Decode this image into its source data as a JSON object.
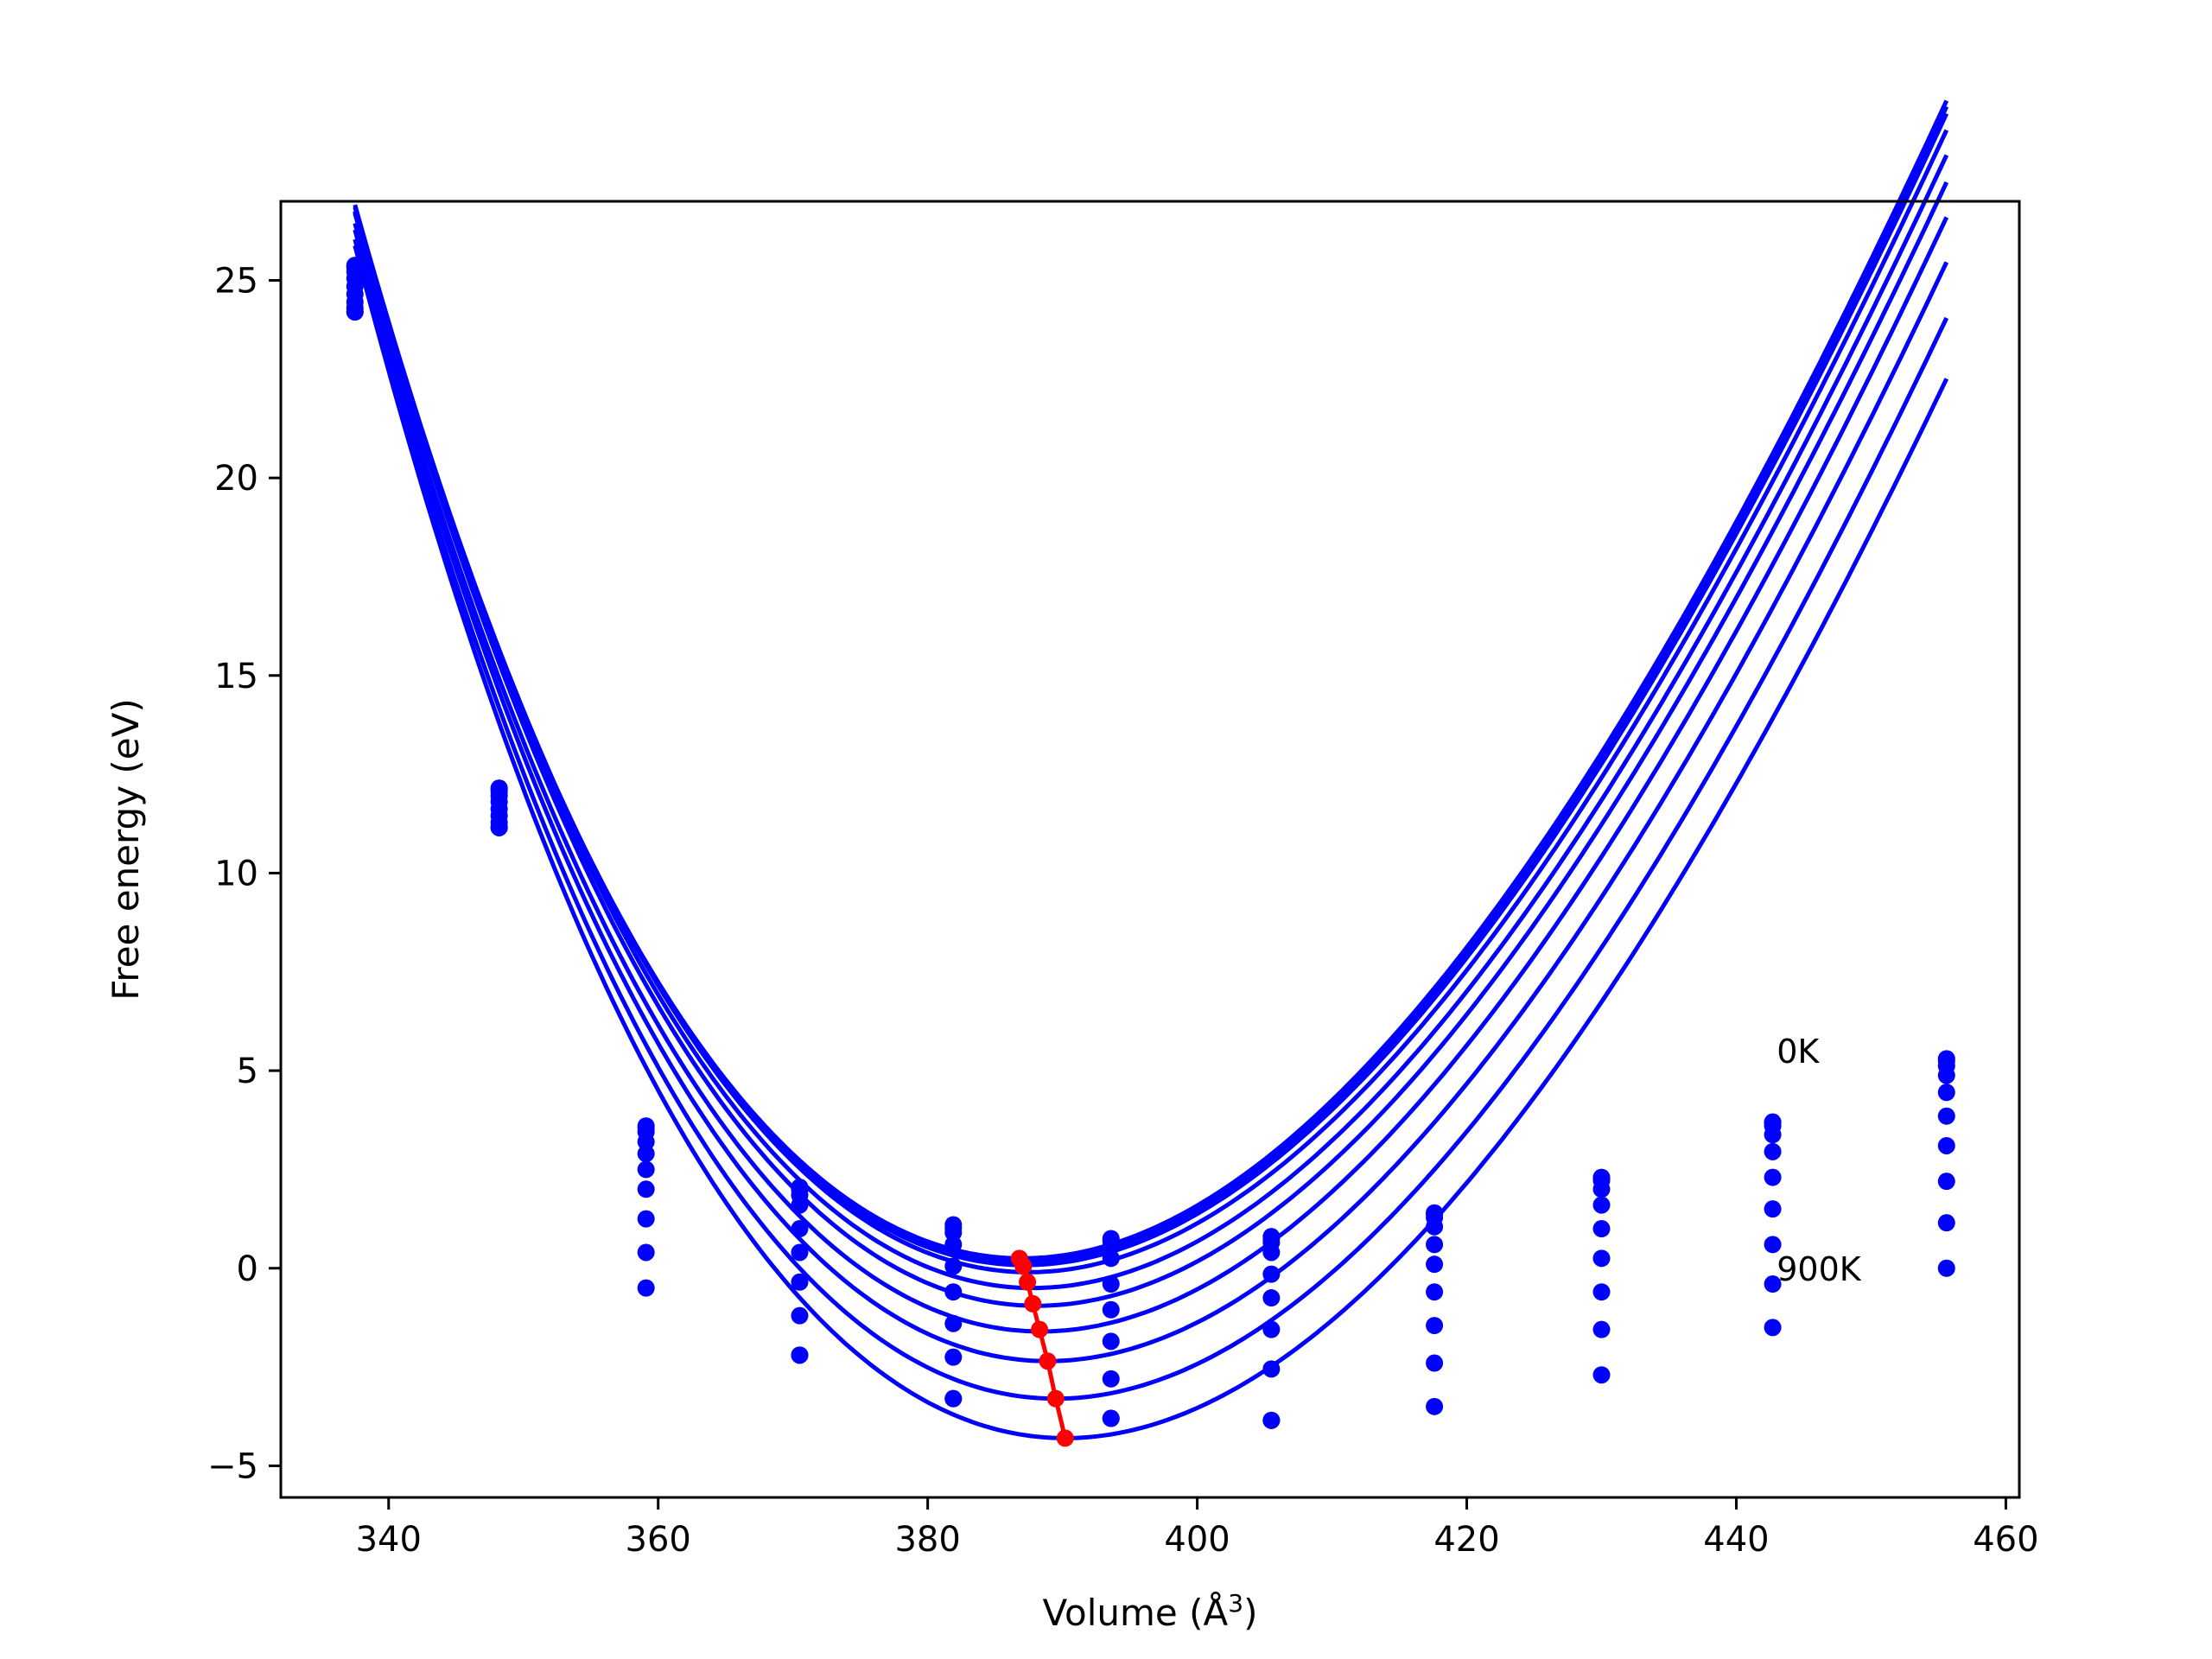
{
  "chart_data": {
    "type": "line",
    "xlabel": "Volume (Å",
    "xlabel_sup": "3",
    "xlabel_end": ")",
    "ylabel": "Free energy (eV)",
    "xlim": [
      332,
      461
    ],
    "ylim": [
      -5.8,
      27
    ],
    "xticks": [
      340,
      360,
      380,
      400,
      420,
      440,
      460
    ],
    "yticks": [
      -5,
      0,
      5,
      10,
      15,
      20,
      25
    ],
    "ytick_labels": [
      "−5",
      "0",
      "5",
      "10",
      "15",
      "20",
      "25"
    ],
    "grid": false,
    "colors": {
      "curves": "#0000ff",
      "points": "#0000ff",
      "minima": "#ff0000"
    },
    "annotations": [
      {
        "text": "0K",
        "x": 443,
        "y": 5.5
      },
      {
        "text": "900K",
        "x": 443,
        "y": 0.0
      }
    ],
    "volumes": [
      337.5,
      348.2,
      359.1,
      370.5,
      381.9,
      393.6,
      405.5,
      417.6,
      430.0,
      442.7,
      455.6
    ],
    "series": [
      {
        "values": [
          25.38,
          12.15,
          3.6,
          2.05,
          1.1,
          0.75,
          0.8,
          1.4,
          2.3,
          3.7,
          5.3
        ]
      },
      {
        "values": [
          25.33,
          12.12,
          3.55,
          1.98,
          1.02,
          0.68,
          0.75,
          1.36,
          2.28,
          3.68,
          5.25
        ]
      },
      {
        "values": [
          25.22,
          12.06,
          3.45,
          1.85,
          0.9,
          0.55,
          0.65,
          1.28,
          2.22,
          3.6,
          5.12
        ]
      },
      {
        "values": [
          25.05,
          11.95,
          3.2,
          1.6,
          0.6,
          0.25,
          0.4,
          1.05,
          2.0,
          3.38,
          4.88
        ]
      },
      {
        "values": [
          24.85,
          11.8,
          2.9,
          1.0,
          0.05,
          -0.4,
          -0.15,
          0.6,
          1.6,
          2.95,
          4.45
        ]
      },
      {
        "values": [
          24.65,
          11.62,
          2.5,
          0.4,
          -0.6,
          -1.05,
          -0.75,
          0.1,
          1.0,
          2.3,
          3.85
        ]
      },
      {
        "values": [
          24.45,
          11.45,
          2.0,
          -0.35,
          -1.4,
          -1.85,
          -1.55,
          -0.6,
          0.25,
          1.5,
          3.1
        ]
      },
      {
        "values": [
          24.3,
          11.28,
          1.25,
          -1.2,
          -2.25,
          -2.8,
          -2.55,
          -1.45,
          -0.6,
          0.6,
          2.2
        ]
      },
      {
        "values": [
          24.2,
          11.15,
          0.4,
          -2.2,
          -3.3,
          -3.8,
          -3.85,
          -2.4,
          -1.55,
          -0.4,
          1.15
        ]
      },
      {
        "values": [
          24.2,
          11.15,
          -0.5,
          -2.2,
          -3.3,
          -3.8,
          -3.85,
          -3.5,
          -2.7,
          -1.5,
          0.0
        ]
      }
    ],
    "fitted_curves": [
      {
        "E0": 0.25,
        "V0": 387.0,
        "B": 6.5,
        "Bp": 4.5
      },
      {
        "E0": 0.18,
        "V0": 387.1,
        "B": 6.5,
        "Bp": 4.5
      },
      {
        "E0": 0.08,
        "V0": 387.2,
        "B": 6.5,
        "Bp": 4.5
      },
      {
        "E0": -0.1,
        "V0": 387.5,
        "B": 6.5,
        "Bp": 4.5
      },
      {
        "E0": -0.5,
        "V0": 387.8,
        "B": 6.5,
        "Bp": 4.5
      },
      {
        "E0": -0.95,
        "V0": 388.1,
        "B": 6.5,
        "Bp": 4.5
      },
      {
        "E0": -1.6,
        "V0": 388.4,
        "B": 6.5,
        "Bp": 4.5
      },
      {
        "E0": -2.35,
        "V0": 388.9,
        "B": 6.5,
        "Bp": 4.5
      },
      {
        "E0": -3.3,
        "V0": 389.5,
        "B": 6.5,
        "Bp": 4.5
      },
      {
        "E0": -4.3,
        "V0": 390.2,
        "B": 6.5,
        "Bp": 4.5
      }
    ],
    "minima": {
      "x": [
        386.8,
        387.1,
        387.4,
        387.8,
        388.3,
        388.9,
        389.5,
        390.2
      ],
      "y": [
        0.25,
        0.05,
        -0.35,
        -0.9,
        -1.55,
        -2.35,
        -3.3,
        -4.3
      ]
    }
  }
}
